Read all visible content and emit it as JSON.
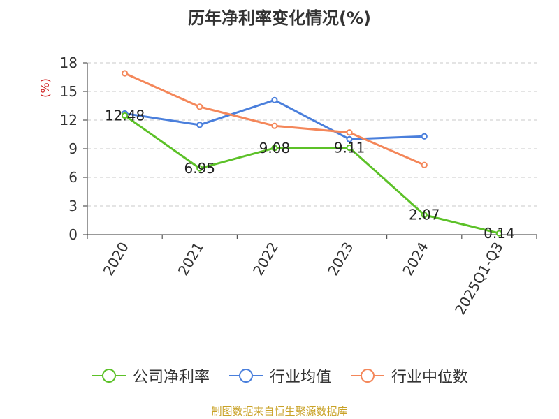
{
  "chart_data": {
    "type": "line",
    "title": "历年净利率变化情况(%)",
    "ylabel": "(%)",
    "ylim": [
      0,
      18
    ],
    "yticks": [
      0,
      3,
      6,
      9,
      12,
      15,
      18
    ],
    "categories": [
      "2020",
      "2021",
      "2022",
      "2023",
      "2024",
      "2025Q1-Q3"
    ],
    "series": [
      {
        "name": "公司净利率",
        "color": "#5cc128",
        "values": [
          12.48,
          6.95,
          9.08,
          9.11,
          2.07,
          0.14
        ],
        "labels": [
          "12.48",
          "6.95",
          "9.08",
          "9.11",
          "2.07",
          "0.14"
        ]
      },
      {
        "name": "行业均值",
        "color": "#4a7fdc",
        "values": [
          12.7,
          11.5,
          14.1,
          10.0,
          10.3,
          null
        ]
      },
      {
        "name": "行业中位数",
        "color": "#f4875a",
        "values": [
          16.9,
          13.4,
          11.4,
          10.7,
          7.3,
          null
        ]
      }
    ],
    "grid": true,
    "legend_position": "bottom"
  },
  "source": "制图数据来自恒生聚源数据库"
}
